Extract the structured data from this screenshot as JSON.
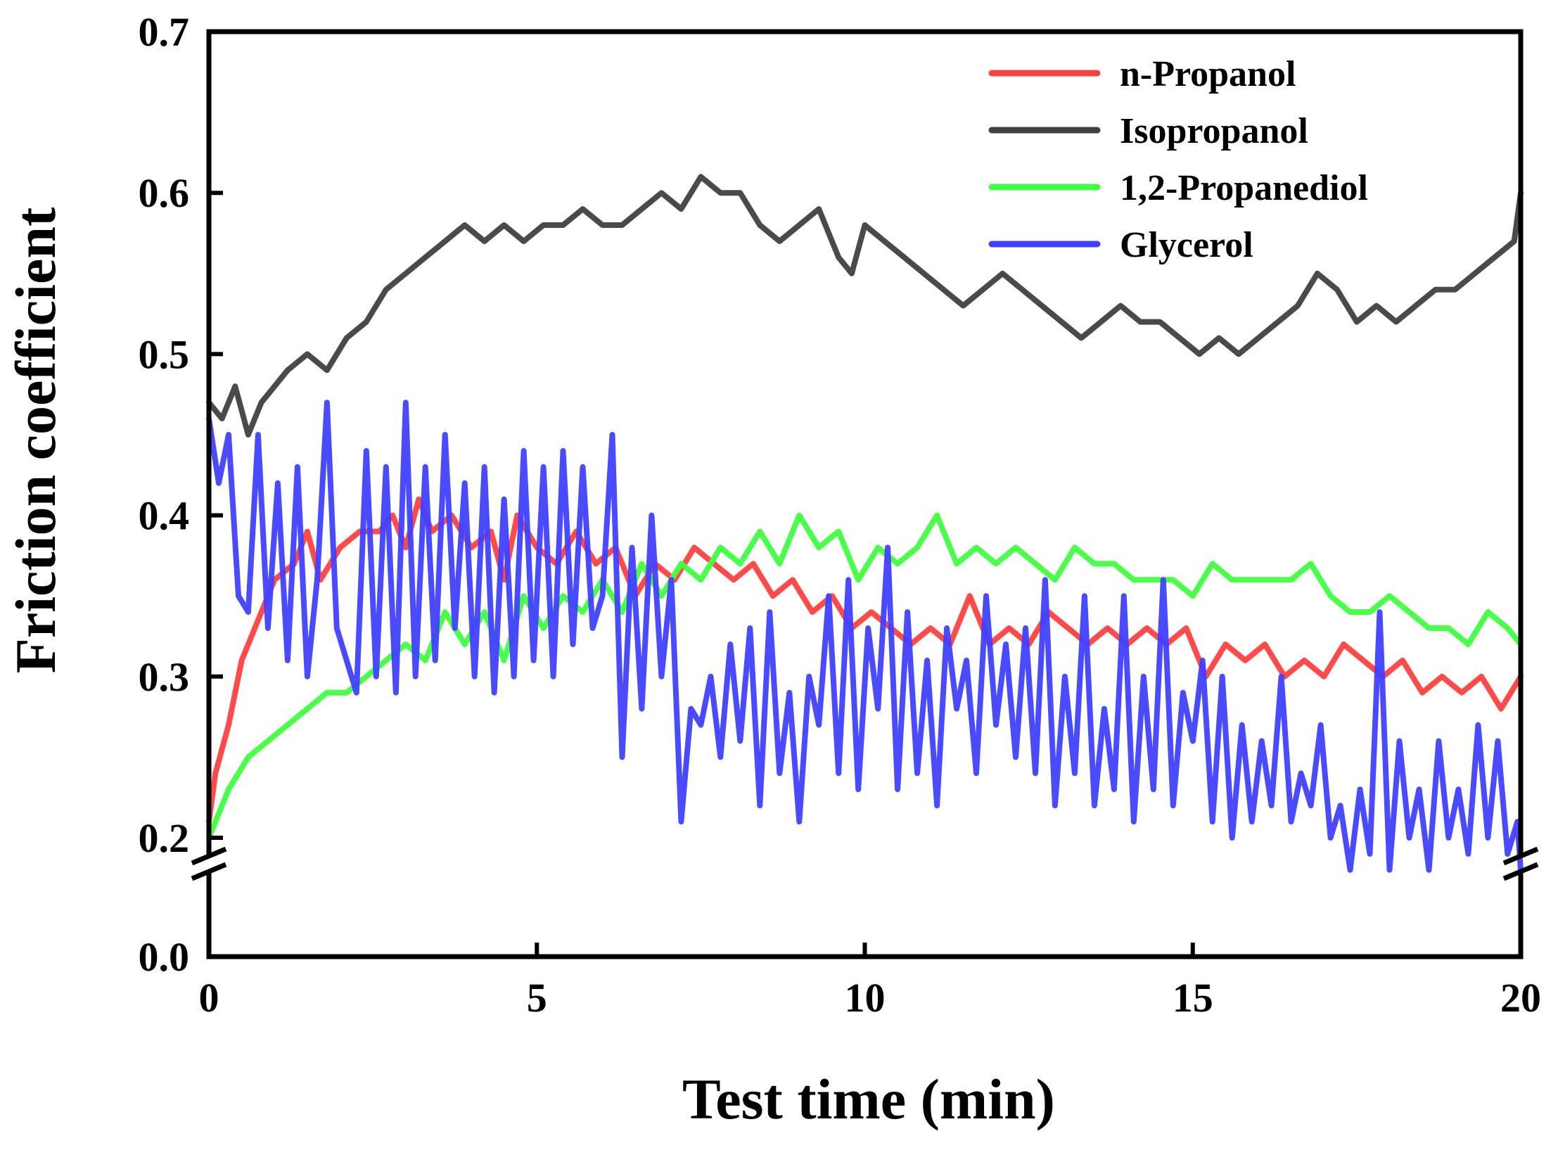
{
  "chart_data": {
    "type": "line",
    "title": "",
    "xlabel": "Test time (min)",
    "ylabel": "Friction coefficient",
    "xlim": [
      0,
      20
    ],
    "ylim": [
      0.18,
      0.7
    ],
    "y_axis_break": {
      "from": 0.0,
      "to": 0.18
    },
    "xticks": [
      "0",
      "5",
      "10",
      "15",
      "20"
    ],
    "yticks": [
      "0.0",
      "0.2",
      "0.3",
      "0.4",
      "0.5",
      "0.6",
      "0.7"
    ],
    "legend_position": "top-right",
    "grid": false,
    "series": [
      {
        "name": "n-Propanol",
        "color": "#ff4040",
        "x": [
          0,
          0.1,
          0.3,
          0.5,
          0.7,
          1.0,
          1.3,
          1.5,
          1.7,
          2.0,
          2.3,
          2.6,
          2.8,
          3.0,
          3.2,
          3.4,
          3.7,
          4.0,
          4.3,
          4.5,
          4.7,
          5.0,
          5.3,
          5.6,
          5.9,
          6.2,
          6.5,
          6.8,
          7.1,
          7.4,
          7.7,
          8.0,
          8.3,
          8.6,
          8.9,
          9.2,
          9.5,
          9.8,
          10.1,
          10.4,
          10.7,
          11.0,
          11.3,
          11.6,
          11.9,
          12.2,
          12.5,
          12.8,
          13.1,
          13.4,
          13.7,
          14.0,
          14.3,
          14.6,
          14.9,
          15.2,
          15.5,
          15.8,
          16.1,
          16.4,
          16.7,
          17.0,
          17.3,
          17.6,
          17.9,
          18.2,
          18.5,
          18.8,
          19.1,
          19.4,
          19.7,
          20.0
        ],
        "y": [
          0.21,
          0.24,
          0.27,
          0.31,
          0.33,
          0.36,
          0.37,
          0.39,
          0.36,
          0.38,
          0.39,
          0.39,
          0.4,
          0.38,
          0.41,
          0.39,
          0.4,
          0.38,
          0.39,
          0.36,
          0.4,
          0.38,
          0.37,
          0.39,
          0.37,
          0.38,
          0.35,
          0.37,
          0.36,
          0.38,
          0.37,
          0.36,
          0.37,
          0.35,
          0.36,
          0.34,
          0.35,
          0.33,
          0.34,
          0.33,
          0.32,
          0.33,
          0.32,
          0.35,
          0.32,
          0.33,
          0.32,
          0.34,
          0.33,
          0.32,
          0.33,
          0.32,
          0.33,
          0.32,
          0.33,
          0.3,
          0.32,
          0.31,
          0.32,
          0.3,
          0.31,
          0.3,
          0.32,
          0.31,
          0.3,
          0.31,
          0.29,
          0.3,
          0.29,
          0.3,
          0.28,
          0.3
        ]
      },
      {
        "name": "Isopropanol",
        "color": "#404040",
        "x": [
          0,
          0.2,
          0.4,
          0.6,
          0.8,
          1.0,
          1.2,
          1.5,
          1.8,
          2.1,
          2.4,
          2.7,
          3.0,
          3.3,
          3.6,
          3.9,
          4.2,
          4.5,
          4.8,
          5.1,
          5.4,
          5.7,
          6.0,
          6.3,
          6.6,
          6.9,
          7.2,
          7.5,
          7.8,
          8.1,
          8.4,
          8.7,
          9.0,
          9.3,
          9.6,
          9.8,
          10.0,
          10.3,
          10.6,
          10.9,
          11.2,
          11.5,
          11.8,
          12.1,
          12.4,
          12.7,
          13.0,
          13.3,
          13.6,
          13.9,
          14.2,
          14.5,
          14.8,
          15.1,
          15.4,
          15.7,
          16.0,
          16.3,
          16.6,
          16.9,
          17.2,
          17.5,
          17.8,
          18.1,
          18.4,
          18.7,
          19.0,
          19.3,
          19.6,
          19.9,
          20.0
        ],
        "y": [
          0.47,
          0.46,
          0.48,
          0.45,
          0.47,
          0.48,
          0.49,
          0.5,
          0.49,
          0.51,
          0.52,
          0.54,
          0.55,
          0.56,
          0.57,
          0.58,
          0.57,
          0.58,
          0.57,
          0.58,
          0.58,
          0.59,
          0.58,
          0.58,
          0.59,
          0.6,
          0.59,
          0.61,
          0.6,
          0.6,
          0.58,
          0.57,
          0.58,
          0.59,
          0.56,
          0.55,
          0.58,
          0.57,
          0.56,
          0.55,
          0.54,
          0.53,
          0.54,
          0.55,
          0.54,
          0.53,
          0.52,
          0.51,
          0.52,
          0.53,
          0.52,
          0.52,
          0.51,
          0.5,
          0.51,
          0.5,
          0.51,
          0.52,
          0.53,
          0.55,
          0.54,
          0.52,
          0.53,
          0.52,
          0.53,
          0.54,
          0.54,
          0.55,
          0.56,
          0.57,
          0.6
        ]
      },
      {
        "name": "1,2-Propanediol",
        "color": "#40ff40",
        "x": [
          0,
          0.3,
          0.6,
          0.9,
          1.2,
          1.5,
          1.8,
          2.1,
          2.4,
          2.7,
          3.0,
          3.3,
          3.6,
          3.9,
          4.2,
          4.5,
          4.8,
          5.1,
          5.4,
          5.7,
          6.0,
          6.3,
          6.6,
          6.9,
          7.2,
          7.5,
          7.8,
          8.1,
          8.4,
          8.7,
          9.0,
          9.3,
          9.6,
          9.9,
          10.2,
          10.5,
          10.8,
          11.1,
          11.4,
          11.7,
          12.0,
          12.3,
          12.6,
          12.9,
          13.2,
          13.5,
          13.8,
          14.1,
          14.4,
          14.7,
          15.0,
          15.3,
          15.6,
          15.9,
          16.2,
          16.5,
          16.8,
          17.1,
          17.4,
          17.7,
          18.0,
          18.3,
          18.6,
          18.9,
          19.2,
          19.5,
          19.8,
          20.0
        ],
        "y": [
          0.2,
          0.23,
          0.25,
          0.26,
          0.27,
          0.28,
          0.29,
          0.29,
          0.3,
          0.31,
          0.32,
          0.31,
          0.34,
          0.32,
          0.34,
          0.31,
          0.35,
          0.33,
          0.35,
          0.34,
          0.36,
          0.34,
          0.37,
          0.35,
          0.37,
          0.36,
          0.38,
          0.37,
          0.39,
          0.37,
          0.4,
          0.38,
          0.39,
          0.36,
          0.38,
          0.37,
          0.38,
          0.4,
          0.37,
          0.38,
          0.37,
          0.38,
          0.37,
          0.36,
          0.38,
          0.37,
          0.37,
          0.36,
          0.36,
          0.36,
          0.35,
          0.37,
          0.36,
          0.36,
          0.36,
          0.36,
          0.37,
          0.35,
          0.34,
          0.34,
          0.35,
          0.34,
          0.33,
          0.33,
          0.32,
          0.34,
          0.33,
          0.32
        ]
      },
      {
        "name": "Glycerol",
        "color": "#4040ff",
        "x": [
          0,
          0.15,
          0.3,
          0.45,
          0.6,
          0.75,
          0.9,
          1.05,
          1.2,
          1.35,
          1.5,
          1.65,
          1.8,
          1.95,
          2.1,
          2.25,
          2.4,
          2.55,
          2.7,
          2.85,
          3.0,
          3.15,
          3.3,
          3.45,
          3.6,
          3.75,
          3.9,
          4.05,
          4.2,
          4.35,
          4.5,
          4.65,
          4.8,
          4.95,
          5.1,
          5.25,
          5.4,
          5.55,
          5.7,
          5.85,
          6.0,
          6.15,
          6.3,
          6.45,
          6.6,
          6.75,
          6.9,
          7.05,
          7.2,
          7.35,
          7.5,
          7.65,
          7.8,
          7.95,
          8.1,
          8.25,
          8.4,
          8.55,
          8.7,
          8.85,
          9.0,
          9.15,
          9.3,
          9.45,
          9.6,
          9.75,
          9.9,
          10.05,
          10.2,
          10.35,
          10.5,
          10.65,
          10.8,
          10.95,
          11.1,
          11.25,
          11.4,
          11.55,
          11.7,
          11.85,
          12.0,
          12.15,
          12.3,
          12.45,
          12.6,
          12.75,
          12.9,
          13.05,
          13.2,
          13.35,
          13.5,
          13.65,
          13.8,
          13.95,
          14.1,
          14.25,
          14.4,
          14.55,
          14.7,
          14.85,
          15.0,
          15.15,
          15.3,
          15.45,
          15.6,
          15.75,
          15.9,
          16.05,
          16.2,
          16.35,
          16.5,
          16.65,
          16.8,
          16.95,
          17.1,
          17.25,
          17.4,
          17.55,
          17.7,
          17.85,
          18.0,
          18.15,
          18.3,
          18.45,
          18.6,
          18.75,
          18.9,
          19.05,
          19.2,
          19.35,
          19.5,
          19.65,
          19.8,
          19.95,
          20.0
        ],
        "y": [
          0.46,
          0.42,
          0.45,
          0.35,
          0.34,
          0.45,
          0.33,
          0.42,
          0.31,
          0.43,
          0.3,
          0.36,
          0.47,
          0.33,
          0.31,
          0.29,
          0.44,
          0.3,
          0.43,
          0.29,
          0.47,
          0.3,
          0.43,
          0.31,
          0.45,
          0.33,
          0.42,
          0.3,
          0.43,
          0.29,
          0.41,
          0.3,
          0.44,
          0.31,
          0.43,
          0.3,
          0.44,
          0.32,
          0.43,
          0.33,
          0.35,
          0.45,
          0.25,
          0.38,
          0.28,
          0.4,
          0.3,
          0.36,
          0.21,
          0.28,
          0.27,
          0.3,
          0.25,
          0.32,
          0.26,
          0.33,
          0.22,
          0.34,
          0.24,
          0.29,
          0.21,
          0.3,
          0.27,
          0.35,
          0.24,
          0.36,
          0.23,
          0.33,
          0.28,
          0.38,
          0.23,
          0.34,
          0.24,
          0.31,
          0.22,
          0.33,
          0.28,
          0.31,
          0.24,
          0.35,
          0.27,
          0.32,
          0.25,
          0.33,
          0.24,
          0.36,
          0.22,
          0.3,
          0.24,
          0.35,
          0.22,
          0.28,
          0.23,
          0.35,
          0.21,
          0.3,
          0.23,
          0.36,
          0.22,
          0.29,
          0.26,
          0.31,
          0.21,
          0.3,
          0.2,
          0.27,
          0.21,
          0.26,
          0.22,
          0.3,
          0.21,
          0.24,
          0.22,
          0.27,
          0.2,
          0.22,
          0.18,
          0.23,
          0.19,
          0.34,
          0.18,
          0.26,
          0.2,
          0.23,
          0.18,
          0.26,
          0.2,
          0.23,
          0.19,
          0.27,
          0.2,
          0.26,
          0.19,
          0.21,
          0.18
        ]
      }
    ]
  }
}
